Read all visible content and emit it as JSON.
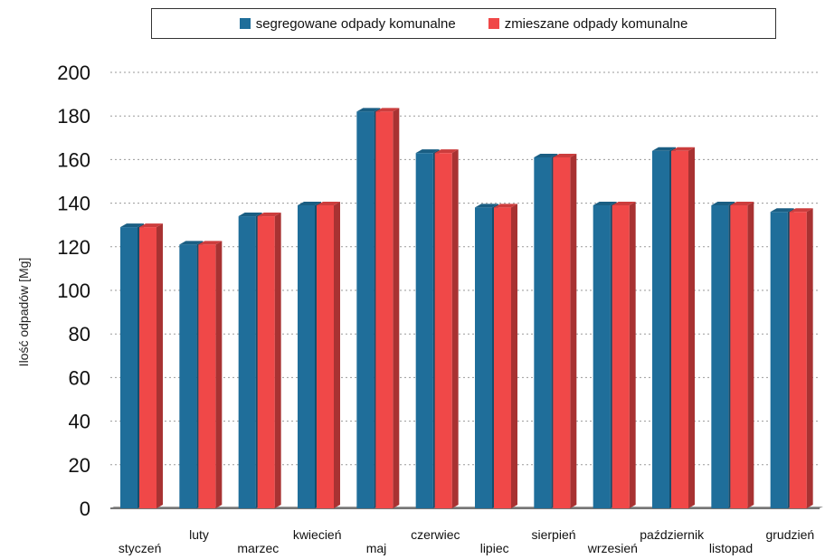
{
  "chart_data": {
    "type": "bar",
    "title": "",
    "xlabel": "",
    "ylabel": "Ilość odpadów [Mg]",
    "ylim": [
      0,
      200
    ],
    "yticks": [
      0,
      20,
      40,
      60,
      80,
      100,
      120,
      140,
      160,
      180,
      200
    ],
    "grid": true,
    "legend_position": "top",
    "categories": [
      "styczeń",
      "luty",
      "marzec",
      "kwiecień",
      "maj",
      "czerwiec",
      "lipiec",
      "sierpień",
      "wrzesień",
      "październik",
      "listopad",
      "grudzień"
    ],
    "series": [
      {
        "name": "segregowane odpady komunalne",
        "color": "#1f6e9a",
        "values": [
          129,
          121,
          134,
          139,
          182,
          163,
          138,
          161,
          139,
          164,
          139,
          136
        ]
      },
      {
        "name": "zmieszane odpady komunalne",
        "color": "#f04848",
        "values": [
          129,
          121,
          134,
          139,
          182,
          163,
          138,
          161,
          139,
          164,
          139,
          136
        ]
      }
    ]
  }
}
